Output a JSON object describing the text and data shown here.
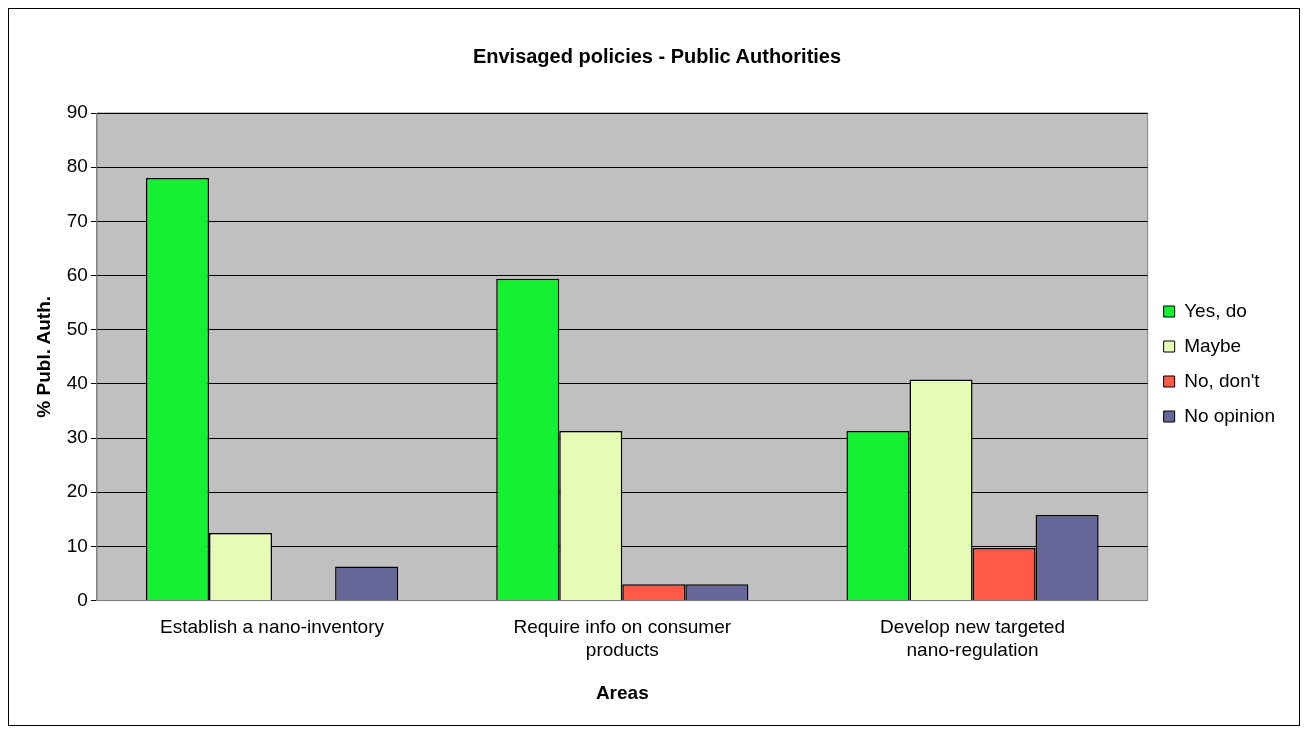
{
  "chart_data": {
    "type": "bar",
    "title": "Envisaged policies - Public Authorities",
    "xlabel": "Areas",
    "ylabel": "% Publ. Auth.",
    "categories": [
      "Establish a nano-inventory",
      "Require info on consumer products",
      "Develop new targeted nano-regulation"
    ],
    "series": [
      {
        "name": "Yes, do",
        "color": "#14f032",
        "values": [
          78,
          59.4,
          31.3
        ]
      },
      {
        "name": "Maybe",
        "color": "#e6fcb4",
        "values": [
          12.5,
          31.3,
          40.8
        ]
      },
      {
        "name": "No, don't",
        "color": "#ff5a46",
        "values": [
          0,
          3,
          9.7
        ]
      },
      {
        "name": "No opinion",
        "color": "#666699",
        "values": [
          6.3,
          3,
          15.8
        ]
      }
    ],
    "ylim": [
      0,
      90
    ],
    "yticks": [
      0,
      10,
      20,
      30,
      40,
      50,
      60,
      70,
      80,
      90
    ],
    "grid": "y",
    "legend": "right"
  }
}
